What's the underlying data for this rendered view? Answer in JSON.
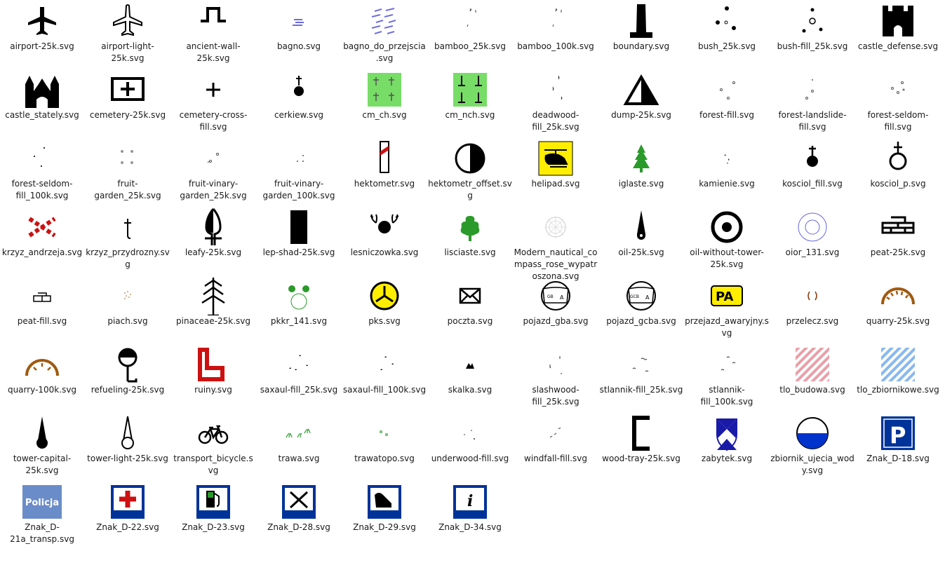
{
  "files": [
    {
      "label": "airport-25k.svg",
      "icon": "airport-icon"
    },
    {
      "label": "airport-light-25k.svg",
      "icon": "airport-light-icon"
    },
    {
      "label": "ancient-wall-25k.svg",
      "icon": "ancient-wall-icon"
    },
    {
      "label": "bagno.svg",
      "icon": "bagno-icon"
    },
    {
      "label": "bagno_do_przejscia.svg",
      "icon": "bagno-do-przejscia-icon"
    },
    {
      "label": "bamboo_25k.svg",
      "icon": "bamboo-icon"
    },
    {
      "label": "bamboo_100k.svg",
      "icon": "bamboo-icon"
    },
    {
      "label": "boundary.svg",
      "icon": "boundary-icon"
    },
    {
      "label": "bush_25k.svg",
      "icon": "bush-icon"
    },
    {
      "label": "bush-fill_25k.svg",
      "icon": "bush-fill-icon"
    },
    {
      "label": "castle_defense.svg",
      "icon": "castle-defense-icon"
    },
    {
      "label": "castle_stately.svg",
      "icon": "castle-stately-icon"
    },
    {
      "label": "cemetery-25k.svg",
      "icon": "cemetery-icon"
    },
    {
      "label": "cemetery-cross-fill.svg",
      "icon": "cross-icon"
    },
    {
      "label": "cerkiew.svg",
      "icon": "cerkiew-icon"
    },
    {
      "label": "cm_ch.svg",
      "icon": "cm-ch-icon"
    },
    {
      "label": "cm_nch.svg",
      "icon": "cm-nch-icon"
    },
    {
      "label": "deadwood-fill_25k.svg",
      "icon": "deadwood-icon"
    },
    {
      "label": "dump-25k.svg",
      "icon": "dump-icon"
    },
    {
      "label": "forest-fill.svg",
      "icon": "forest-fill-icon"
    },
    {
      "label": "forest-landslide-fill.svg",
      "icon": "forest-landslide-icon"
    },
    {
      "label": "forest-seldom-fill.svg",
      "icon": "forest-seldom-icon"
    },
    {
      "label": "forest-seldom-fill_100k.svg",
      "icon": "forest-seldom-100k-icon"
    },
    {
      "label": "fruit-garden_25k.svg",
      "icon": "fruit-garden-icon"
    },
    {
      "label": "fruit-vinary-garden_25k.svg",
      "icon": "fruit-vinary-icon"
    },
    {
      "label": "fruit-vinary-garden_100k.svg",
      "icon": "fruit-vinary-100k-icon"
    },
    {
      "label": "hektometr.svg",
      "icon": "hektometr-icon"
    },
    {
      "label": "hektometr_offset.svg",
      "icon": "hektometr-offset-icon"
    },
    {
      "label": "helipad.svg",
      "icon": "helipad-icon"
    },
    {
      "label": "iglaste.svg",
      "icon": "iglaste-icon"
    },
    {
      "label": "kamienie.svg",
      "icon": "kamienie-icon"
    },
    {
      "label": "kosciol_fill.svg",
      "icon": "kosciol-fill-icon"
    },
    {
      "label": "kosciol_p.svg",
      "icon": "kosciol-p-icon"
    },
    {
      "label": "krzyz_andrzeja.svg",
      "icon": "krzyz-andrzeja-icon"
    },
    {
      "label": "krzyz_przydrozny.svg",
      "icon": "krzyz-przydrozny-icon"
    },
    {
      "label": "leafy-25k.svg",
      "icon": "leafy-icon"
    },
    {
      "label": "lep-shad-25k.svg",
      "icon": "lep-shad-icon"
    },
    {
      "label": "lesniczowka.svg",
      "icon": "lesniczowka-icon"
    },
    {
      "label": "lisciaste.svg",
      "icon": "lisciaste-icon"
    },
    {
      "label": "Modern_nautical_compass_rose_wypatroszona.svg",
      "icon": "compass-rose-icon"
    },
    {
      "label": "oil-25k.svg",
      "icon": "oil-icon"
    },
    {
      "label": "oil-without-tower-25k.svg",
      "icon": "oil-without-tower-icon"
    },
    {
      "label": "oior_131.svg",
      "icon": "oior-icon"
    },
    {
      "label": "peat-25k.svg",
      "icon": "peat-icon"
    },
    {
      "label": "peat-fill.svg",
      "icon": "peat-fill-icon"
    },
    {
      "label": "piach.svg",
      "icon": "piach-icon"
    },
    {
      "label": "pinaceae-25k.svg",
      "icon": "pinaceae-icon"
    },
    {
      "label": "pkkr_141.svg",
      "icon": "pkkr-icon"
    },
    {
      "label": "pks.svg",
      "icon": "pks-icon"
    },
    {
      "label": "poczta.svg",
      "icon": "envelope-icon"
    },
    {
      "label": "pojazd_gba.svg",
      "icon": "pojazd-gba-icon"
    },
    {
      "label": "pojazd_gcba.svg",
      "icon": "pojazd-gcba-icon"
    },
    {
      "label": "przejazd_awaryjny.svg",
      "icon": "przejazd-awaryjny-icon"
    },
    {
      "label": "przelecz.svg",
      "icon": "przelecz-icon"
    },
    {
      "label": "quarry-25k.svg",
      "icon": "quarry-icon"
    },
    {
      "label": "quarry-100k.svg",
      "icon": "quarry-100k-icon"
    },
    {
      "label": "refueling-25k.svg",
      "icon": "refueling-icon"
    },
    {
      "label": "ruiny.svg",
      "icon": "ruiny-icon"
    },
    {
      "label": "saxaul-fill_25k.svg",
      "icon": "saxaul-icon"
    },
    {
      "label": "saxaul-fill_100k.svg",
      "icon": "saxaul-100k-icon"
    },
    {
      "label": "skalka.svg",
      "icon": "skalka-icon"
    },
    {
      "label": "slashwood-fill_25k.svg",
      "icon": "slashwood-icon"
    },
    {
      "label": "stlannik-fill_25k.svg",
      "icon": "stlannik-icon"
    },
    {
      "label": "stlannik-fill_100k.svg",
      "icon": "stlannik-100k-icon"
    },
    {
      "label": "tlo_budowa.svg",
      "icon": "tlo-budowa-icon"
    },
    {
      "label": "tlo_zbiornikowe.svg",
      "icon": "tlo-zbiornikowe-icon"
    },
    {
      "label": "tower-capital-25k.svg",
      "icon": "tower-capital-icon"
    },
    {
      "label": "tower-light-25k.svg",
      "icon": "tower-light-icon"
    },
    {
      "label": "transport_bicycle.svg",
      "icon": "bicycle-icon"
    },
    {
      "label": "trawa.svg",
      "icon": "trawa-icon"
    },
    {
      "label": "trawatopo.svg",
      "icon": "trawatopo-icon"
    },
    {
      "label": "underwood-fill.svg",
      "icon": "underwood-icon"
    },
    {
      "label": "windfall-fill.svg",
      "icon": "windfall-icon"
    },
    {
      "label": "wood-tray-25k.svg",
      "icon": "wood-tray-icon"
    },
    {
      "label": "zabytek.svg",
      "icon": "zabytek-icon"
    },
    {
      "label": "zbiornik_ujecia_wody.svg",
      "icon": "zbiornik-icon"
    },
    {
      "label": "Znak_D-18.svg",
      "icon": "parking-sign-icon"
    },
    {
      "label": "Znak_D-21a_transp.svg",
      "icon": "policja-sign-icon",
      "text": "Policja"
    },
    {
      "label": "Znak_D-22.svg",
      "icon": "first-aid-sign-icon"
    },
    {
      "label": "Znak_D-23.svg",
      "icon": "fuel-sign-icon"
    },
    {
      "label": "Znak_D-28.svg",
      "icon": "restaurant-sign-icon"
    },
    {
      "label": "Znak_D-29.svg",
      "icon": "phone-sign-icon"
    },
    {
      "label": "Znak_D-34.svg",
      "icon": "info-sign-icon"
    }
  ],
  "colors": {
    "green_light": "#77dd66",
    "green_tree": "#2a9a2a",
    "red": "#cc1111",
    "yellow": "#ffee00",
    "blue_sign": "#003399",
    "brown": "#a05a10",
    "policja_bg": "#6a8cc8"
  }
}
